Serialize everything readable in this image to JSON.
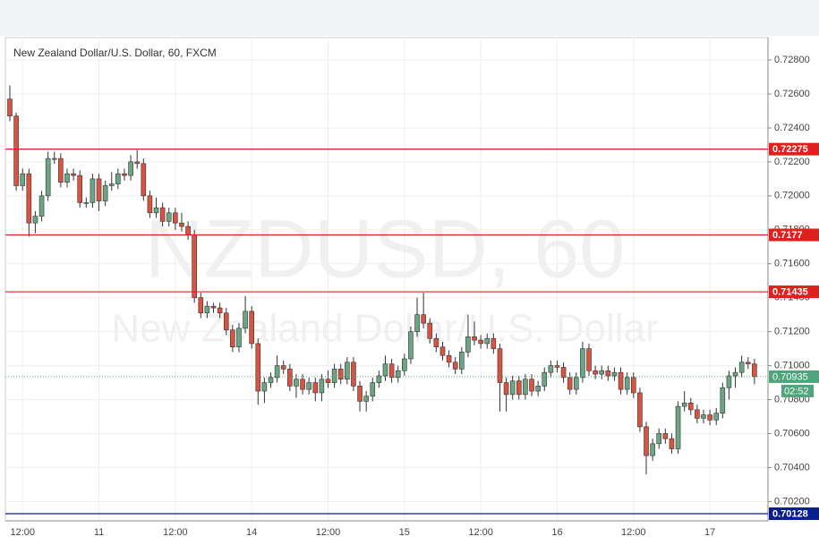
{
  "chart_data": {
    "type": "candlestick",
    "title": "New Zealand Dollar/U.S. Dollar, 60, FXCM",
    "watermark": "NZDUSD, 60",
    "watermark_subtitle": "New Zealand Dollar/U.S. Dollar",
    "up_color": "#6ba583",
    "down_color": "#d75442",
    "categories": [
      null,
      null,
      "12:00",
      null,
      null,
      null,
      null,
      null,
      null,
      null,
      null,
      null,
      null,
      null,
      "11",
      null,
      null,
      null,
      null,
      null,
      null,
      null,
      null,
      null,
      null,
      null,
      "12:00",
      null,
      null,
      null,
      null,
      null,
      null,
      null,
      null,
      null,
      null,
      null,
      "14",
      null,
      null,
      null,
      null,
      null,
      null,
      null,
      null,
      null,
      null,
      null,
      "12:00",
      null,
      null,
      null,
      null,
      null,
      null,
      null,
      null,
      null,
      null,
      null,
      "15",
      null,
      null,
      null,
      null,
      null,
      null,
      null,
      null,
      null,
      null,
      null,
      "12:00",
      null,
      null,
      null,
      null,
      null,
      null,
      null,
      null,
      null,
      null,
      null,
      "16",
      null,
      null,
      null,
      null,
      null,
      null,
      null,
      null,
      null,
      null,
      null,
      "12:00",
      null,
      null,
      null,
      null,
      null,
      null,
      null,
      null,
      null,
      null,
      null,
      "17",
      null,
      null,
      null,
      null,
      null,
      null,
      null
    ],
    "open": [
      0.7257,
      0.7247,
      0.7206,
      0.7213,
      0.7184,
      0.7188,
      0.72,
      0.7222,
      0.7222,
      0.7208,
      0.7213,
      0.7212,
      0.7196,
      0.7196,
      0.721,
      0.7197,
      0.7206,
      0.7207,
      0.7213,
      0.7212,
      0.722,
      0.7219,
      0.72,
      0.719,
      0.7193,
      0.7185,
      0.719,
      0.7184,
      0.7182,
      0.7177,
      0.714,
      0.7131,
      0.7135,
      0.7134,
      0.7131,
      0.7121,
      0.7111,
      0.7122,
      0.7132,
      0.7113,
      0.7085,
      0.709,
      0.7093,
      0.71,
      0.7098,
      0.7088,
      0.7092,
      0.7086,
      0.709,
      0.7084,
      0.7092,
      0.709,
      0.7098,
      0.7092,
      0.7102,
      0.7088,
      0.7079,
      0.7082,
      0.709,
      0.7094,
      0.7101,
      0.7093,
      0.7097,
      0.7104,
      0.712,
      0.713,
      0.7125,
      0.7116,
      0.7111,
      0.7106,
      0.7102,
      0.7098,
      0.7108,
      0.7117,
      0.7115,
      0.7113,
      0.7116,
      0.711,
      0.709,
      0.7083,
      0.7091,
      0.7083,
      0.7092,
      0.7085,
      0.7088,
      0.7096,
      0.71,
      0.7099,
      0.7093,
      0.7086,
      0.7093,
      0.711,
      0.7097,
      0.7095,
      0.7097,
      0.7094,
      0.7096,
      0.7086,
      0.7093,
      0.7084,
      0.7064,
      0.7047,
      0.7054,
      0.706,
      0.7057,
      0.7051,
      0.7076,
      0.7078,
      0.7074,
      0.7069,
      0.7071,
      0.7068,
      0.7072,
      0.7087,
      0.7094,
      0.7096,
      0.7102,
      0.7101
    ],
    "high": [
      0.7265,
      0.7249,
      0.7216,
      0.7216,
      0.7191,
      0.7203,
      0.7226,
      0.7226,
      0.7225,
      0.7216,
      0.7216,
      0.7215,
      0.7199,
      0.7213,
      0.7213,
      0.7209,
      0.7214,
      0.7216,
      0.7216,
      0.7224,
      0.7227,
      0.7222,
      0.7203,
      0.7199,
      0.7196,
      0.7193,
      0.7193,
      0.719,
      0.7185,
      0.718,
      0.7143,
      0.7138,
      0.7137,
      0.7137,
      0.7134,
      0.7124,
      0.7125,
      0.7141,
      0.7135,
      0.7116,
      0.7093,
      0.7096,
      0.7106,
      0.7103,
      0.7101,
      0.7095,
      0.7095,
      0.7093,
      0.7093,
      0.7095,
      0.7097,
      0.7101,
      0.7101,
      0.7105,
      0.7105,
      0.7091,
      0.7085,
      0.7093,
      0.7097,
      0.7106,
      0.7104,
      0.71,
      0.7107,
      0.7123,
      0.714,
      0.7143,
      0.7128,
      0.7119,
      0.7114,
      0.7109,
      0.7105,
      0.7111,
      0.713,
      0.7126,
      0.7118,
      0.7119,
      0.7119,
      0.7113,
      0.7093,
      0.7094,
      0.7094,
      0.7095,
      0.7095,
      0.7091,
      0.7099,
      0.7103,
      0.7103,
      0.7102,
      0.7096,
      0.7096,
      0.7114,
      0.7113,
      0.71,
      0.71,
      0.71,
      0.7099,
      0.7099,
      0.7096,
      0.7096,
      0.7087,
      0.7067,
      0.7057,
      0.7063,
      0.7063,
      0.706,
      0.7079,
      0.7085,
      0.7081,
      0.7077,
      0.7074,
      0.7074,
      0.7075,
      0.709,
      0.7097,
      0.7099,
      0.7106,
      0.7105,
      0.7104
    ],
    "low": [
      0.7244,
      0.7203,
      0.7203,
      0.7176,
      0.7178,
      0.7185,
      0.7197,
      0.7219,
      0.7205,
      0.7205,
      0.7209,
      0.7193,
      0.7193,
      0.7193,
      0.7191,
      0.7194,
      0.7203,
      0.7204,
      0.7209,
      0.7209,
      0.7216,
      0.7197,
      0.7187,
      0.7187,
      0.7182,
      0.7182,
      0.718,
      0.7179,
      0.7174,
      0.7137,
      0.7128,
      0.7128,
      0.7131,
      0.7128,
      0.7118,
      0.7108,
      0.7108,
      0.7119,
      0.711,
      0.7077,
      0.7078,
      0.7087,
      0.709,
      0.7095,
      0.7085,
      0.7081,
      0.7083,
      0.7083,
      0.7079,
      0.7079,
      0.7087,
      0.7087,
      0.7089,
      0.7089,
      0.7085,
      0.7073,
      0.7073,
      0.7079,
      0.7087,
      0.7091,
      0.709,
      0.709,
      0.7094,
      0.7101,
      0.7117,
      0.7122,
      0.7113,
      0.7108,
      0.7103,
      0.7099,
      0.7095,
      0.7095,
      0.7105,
      0.7112,
      0.711,
      0.711,
      0.7107,
      0.7073,
      0.7073,
      0.708,
      0.708,
      0.708,
      0.7082,
      0.7082,
      0.7085,
      0.7093,
      0.7096,
      0.709,
      0.7083,
      0.7083,
      0.709,
      0.7094,
      0.7092,
      0.7092,
      0.7091,
      0.7091,
      0.7083,
      0.7083,
      0.7081,
      0.7061,
      0.7036,
      0.7044,
      0.7051,
      0.7054,
      0.7048,
      0.7048,
      0.7073,
      0.7071,
      0.7066,
      0.7066,
      0.7065,
      0.7065,
      0.7069,
      0.708,
      0.7087,
      0.7093,
      0.7098,
      0.7089
    ],
    "close": [
      0.7247,
      0.7206,
      0.7213,
      0.7184,
      0.7188,
      0.72,
      0.7222,
      0.7222,
      0.7208,
      0.7213,
      0.7212,
      0.7196,
      0.7196,
      0.721,
      0.7197,
      0.7206,
      0.7207,
      0.7213,
      0.7212,
      0.722,
      0.7219,
      0.72,
      0.719,
      0.7193,
      0.7185,
      0.719,
      0.7184,
      0.7182,
      0.7177,
      0.714,
      0.7131,
      0.7135,
      0.7134,
      0.7131,
      0.7121,
      0.7111,
      0.7122,
      0.7132,
      0.7113,
      0.7085,
      0.709,
      0.7093,
      0.71,
      0.7098,
      0.7088,
      0.7092,
      0.7086,
      0.709,
      0.7084,
      0.7092,
      0.709,
      0.7098,
      0.7092,
      0.7102,
      0.7088,
      0.7079,
      0.7082,
      0.709,
      0.7094,
      0.7101,
      0.7093,
      0.7097,
      0.7104,
      0.712,
      0.713,
      0.7125,
      0.7116,
      0.7111,
      0.7106,
      0.7102,
      0.7098,
      0.7108,
      0.7117,
      0.7115,
      0.7113,
      0.7116,
      0.711,
      0.709,
      0.7083,
      0.7091,
      0.7083,
      0.7092,
      0.7085,
      0.7088,
      0.7096,
      0.71,
      0.7099,
      0.7093,
      0.7086,
      0.7093,
      0.711,
      0.7097,
      0.7095,
      0.7097,
      0.7094,
      0.7096,
      0.7086,
      0.7093,
      0.7084,
      0.7064,
      0.7047,
      0.7054,
      0.706,
      0.7057,
      0.7051,
      0.7076,
      0.7078,
      0.7074,
      0.7069,
      0.7071,
      0.7068,
      0.7072,
      0.7087,
      0.7094,
      0.7096,
      0.7102,
      0.7101,
      0.70935
    ],
    "ylim": [
      0.70086,
      0.72932
    ],
    "yticks": [
      {
        "value": 0.702,
        "label": "0.70200"
      },
      {
        "value": 0.704,
        "label": "0.70400"
      },
      {
        "value": 0.706,
        "label": "0.70600"
      },
      {
        "value": 0.708,
        "label": "0.70800"
      },
      {
        "value": 0.71,
        "label": "0.71000"
      },
      {
        "value": 0.712,
        "label": "0.71200"
      },
      {
        "value": 0.714,
        "label": "0.71400"
      },
      {
        "value": 0.716,
        "label": "0.71600"
      },
      {
        "value": 0.718,
        "label": "0.71800"
      },
      {
        "value": 0.72,
        "label": "0.72000"
      },
      {
        "value": 0.722,
        "label": "0.72200"
      },
      {
        "value": 0.724,
        "label": "0.72400"
      },
      {
        "value": 0.726,
        "label": "0.72600"
      },
      {
        "value": 0.728,
        "label": "0.72800"
      }
    ],
    "grid": true,
    "levels": [
      {
        "value": 0.72275,
        "color": "#e0201c"
      },
      {
        "value": 0.7177,
        "color": "#e0201c"
      },
      {
        "value": 0.71435,
        "color": "#e0201c"
      },
      {
        "value": 0.70128,
        "color": "#0a1f8f"
      }
    ],
    "last_price": 0.70935,
    "last_price_color": "#4ea57b",
    "countdown": "02:52"
  }
}
